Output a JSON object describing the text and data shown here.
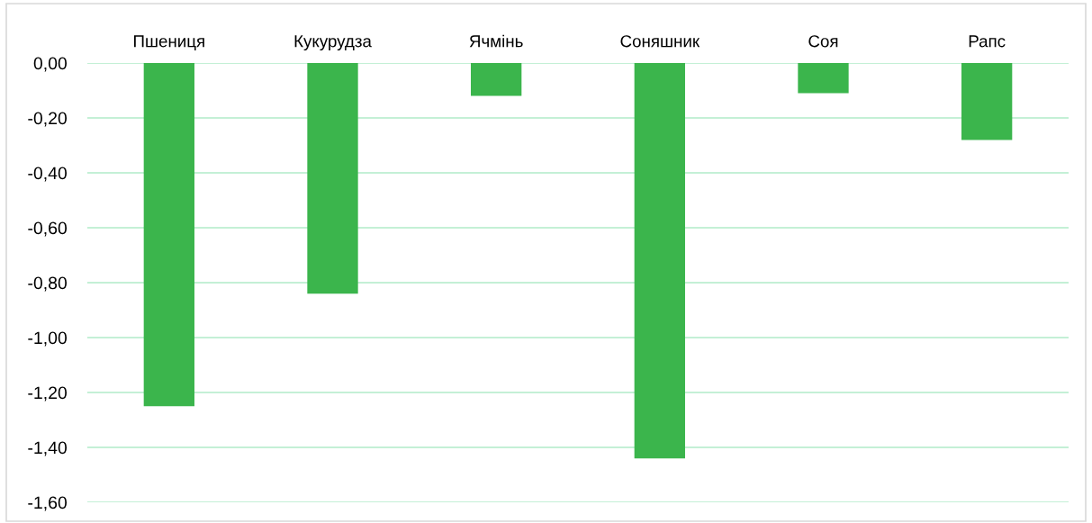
{
  "chart_data": {
    "type": "bar",
    "categories": [
      "Пшениця",
      "Кукурудза",
      "Ячмінь",
      "Соняшник",
      "Соя",
      "Рапс"
    ],
    "values": [
      -1.25,
      -0.84,
      -0.12,
      -1.44,
      -0.11,
      -0.28
    ],
    "color": "#3bb54c",
    "ylim": [
      -1.6,
      0
    ],
    "yticks": [
      {
        "value": 0,
        "label": "0,00"
      },
      {
        "value": -0.2,
        "label": "-0,20"
      },
      {
        "value": -0.4,
        "label": "-0,40"
      },
      {
        "value": -0.6,
        "label": "-0,60"
      },
      {
        "value": -0.8,
        "label": "-0,80"
      },
      {
        "value": -1.0,
        "label": "-1,00"
      },
      {
        "value": -1.2,
        "label": "-1,20"
      },
      {
        "value": -1.4,
        "label": "-1,40"
      },
      {
        "value": -1.6,
        "label": "-1,60"
      }
    ],
    "grid": "y",
    "legend": false
  }
}
